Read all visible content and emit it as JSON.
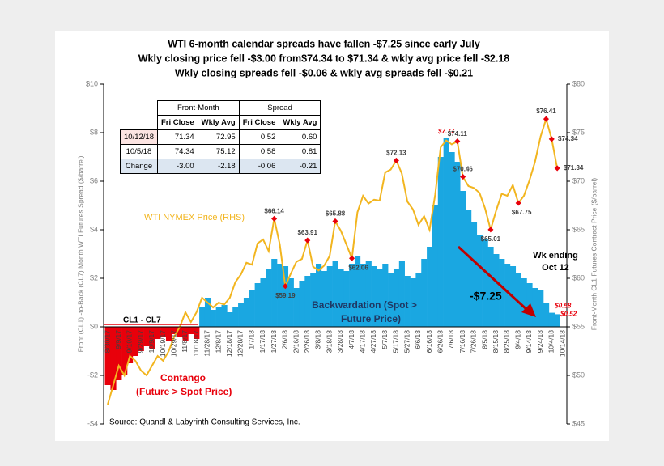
{
  "chart_data": {
    "type": "combo",
    "title_lines": [
      "WTI 6-month calendar spreads have fallen -$7.25 since early July",
      "Wkly closing price fell -$3.00 from$74.34 to $71.34 & wkly avg price fell -$2.18",
      "Wkly closing spreads fell -$0.06 & wkly avg spreads fell -$0.21"
    ],
    "ylabel": "Front (CL1) -to-Back (CL7) Month WTI Futures Spread ($/barrel)",
    "y2label": "Front-Month CL1 Futures Contract Price ($/barrel)",
    "source": "Source: Quandl & Labyrinth Consulting Services, Inc.",
    "notes": [
      "Contango",
      "(Future > Spot Price)",
      "Backwardation (Spot >",
      "Future Price)",
      "-$7.25",
      "Wk ending",
      "Oct 12"
    ],
    "ylim": [
      -4,
      10
    ],
    "yticks": [
      {
        "value": -4,
        "label": "-$4"
      },
      {
        "value": -2,
        "label": "-$2"
      },
      {
        "value": 0,
        "label": "$0"
      },
      {
        "value": 2,
        "label": "$2"
      },
      {
        "value": 4,
        "label": "$4"
      },
      {
        "value": 6,
        "label": "$6"
      },
      {
        "value": 8,
        "label": "$8"
      },
      {
        "value": 10,
        "label": "$10"
      }
    ],
    "y2lim": [
      45,
      80
    ],
    "y2ticks": [
      {
        "value": 45,
        "label": "$45"
      },
      {
        "value": 50,
        "label": "$50"
      },
      {
        "value": 55,
        "label": "$55"
      },
      {
        "value": 60,
        "label": "$60"
      },
      {
        "value": 65,
        "label": "$65"
      },
      {
        "value": 70,
        "label": "$70"
      },
      {
        "value": 75,
        "label": "$75"
      },
      {
        "value": 80,
        "label": "$80"
      }
    ],
    "categories": [
      "8/30/17",
      null,
      "9/9/17",
      null,
      "9/19/17",
      null,
      "9/29/17",
      null,
      "10/9/17",
      null,
      "10/19/17",
      null,
      "10/29/17",
      null,
      "11/8/17",
      null,
      "11/18/17",
      null,
      "11/28/17",
      null,
      "12/8/17",
      null,
      "12/18/17",
      null,
      "12/28/17",
      null,
      "1/7/18",
      null,
      "1/17/18",
      null,
      "1/27/18",
      null,
      "2/6/18",
      null,
      "2/16/18",
      null,
      "2/26/18",
      null,
      "3/8/18",
      null,
      "3/18/18",
      null,
      "3/28/18",
      null,
      "4/7/18",
      null,
      "4/17/18",
      null,
      "4/27/18",
      null,
      "5/7/18",
      null,
      "5/17/18",
      null,
      "5/27/18",
      null,
      "6/6/18",
      null,
      "6/16/18",
      null,
      "6/26/18",
      null,
      "7/6/18",
      null,
      "7/16/18",
      null,
      "7/26/18",
      null,
      "8/5/18",
      null,
      "8/15/18",
      null,
      "8/25/18",
      null,
      "9/4/18",
      null,
      "9/14/18",
      null,
      "9/24/18",
      null,
      "10/4/18",
      null,
      "10/14/18"
    ],
    "series": [
      {
        "name": "CL1 - CL7",
        "type": "bar",
        "color": "#1aa7e1",
        "negative_color": "#e8000b",
        "values": [
          -2.4,
          -2.6,
          -2.2,
          -2.0,
          -1.5,
          -1.2,
          -1.0,
          -0.8,
          -0.9,
          -0.5,
          -0.4,
          -0.6,
          -0.3,
          -0.4,
          -0.6,
          -0.3,
          -0.5,
          0.8,
          1.2,
          0.7,
          0.8,
          0.9,
          0.6,
          0.8,
          1.0,
          1.2,
          1.5,
          1.8,
          2.0,
          2.4,
          2.8,
          2.6,
          2.5,
          2.0,
          1.6,
          1.9,
          2.1,
          2.2,
          2.6,
          2.3,
          2.5,
          2.7,
          2.4,
          2.3,
          2.6,
          2.9,
          2.6,
          2.7,
          2.5,
          2.4,
          2.6,
          2.2,
          2.4,
          2.7,
          2.1,
          2.0,
          2.2,
          2.8,
          3.3,
          5.0,
          7.0,
          7.77,
          7.2,
          6.8,
          5.6,
          4.8,
          4.3,
          3.8,
          3.6,
          3.3,
          3.0,
          2.8,
          2.6,
          2.5,
          2.2,
          2.0,
          1.8,
          1.6,
          1.5,
          1.0,
          0.58,
          0.52,
          null
        ],
        "value_labels": [
          null,
          null,
          null,
          null,
          null,
          null,
          null,
          null,
          null,
          null,
          null,
          null,
          null,
          null,
          null,
          null,
          null,
          null,
          null,
          null,
          null,
          null,
          null,
          null,
          null,
          null,
          null,
          null,
          null,
          null,
          null,
          null,
          null,
          null,
          null,
          null,
          null,
          null,
          null,
          null,
          null,
          null,
          null,
          null,
          null,
          null,
          null,
          null,
          null,
          null,
          null,
          null,
          null,
          null,
          null,
          null,
          null,
          null,
          null,
          null,
          null,
          "$7.77",
          null,
          null,
          null,
          null,
          null,
          null,
          null,
          null,
          null,
          null,
          null,
          null,
          null,
          null,
          null,
          null,
          null,
          null,
          "$0.58",
          "$0.52",
          null
        ]
      },
      {
        "name": "WTI NYMEX Price (RHS)",
        "type": "line",
        "axis": "y2",
        "color": "#f2b51f",
        "values": [
          47,
          49,
          51,
          50,
          52,
          51.5,
          50.5,
          50,
          51,
          52,
          51.5,
          52.5,
          54,
          55,
          56.5,
          55.5,
          56.5,
          58,
          57.5,
          57,
          57.5,
          57.3,
          58,
          59.6,
          60.4,
          61.6,
          61.4,
          63.6,
          64,
          62.8,
          66.14,
          63.5,
          59.19,
          60.5,
          61.7,
          62,
          63.91,
          61.2,
          60.8,
          61.3,
          62.3,
          65.88,
          64.9,
          63.5,
          62.06,
          66.8,
          68.5,
          67.7,
          68.1,
          68,
          70.9,
          71.2,
          72.13,
          70.8,
          67.9,
          67.1,
          65.5,
          66.4,
          65,
          68.6,
          73.5,
          74.2,
          73.8,
          74.11,
          70.46,
          69.5,
          69.3,
          68.8,
          67.2,
          65.01,
          67,
          68.7,
          68.5,
          69.6,
          67.75,
          68.5,
          70.1,
          72,
          74.6,
          76.41,
          74.34,
          71.34,
          null
        ],
        "value_labels": [
          null,
          null,
          null,
          null,
          null,
          null,
          null,
          null,
          null,
          null,
          null,
          null,
          null,
          null,
          null,
          null,
          null,
          null,
          null,
          null,
          null,
          null,
          null,
          null,
          null,
          null,
          null,
          null,
          null,
          null,
          "$66.14",
          null,
          "$59.19",
          null,
          null,
          null,
          "$63.91",
          null,
          null,
          null,
          null,
          "$65.88",
          null,
          null,
          "$62.06",
          null,
          null,
          null,
          null,
          null,
          null,
          null,
          "$72.13",
          null,
          null,
          null,
          null,
          null,
          null,
          null,
          null,
          null,
          null,
          "$74.11",
          "$70.46",
          null,
          null,
          null,
          null,
          "$65.01",
          null,
          null,
          null,
          null,
          "$67.75",
          null,
          null,
          null,
          null,
          "$76.41",
          "$74.34",
          "$71.34",
          null
        ]
      }
    ],
    "table": {
      "group_header": [
        "Front-Month",
        "Spread"
      ],
      "header": [
        "Fri Close",
        "Wkly Avg",
        "Fri Close",
        "Wkly Avg"
      ],
      "rows": [
        [
          "10/12/18",
          "71.34",
          "72.95",
          "0.52",
          "0.60"
        ],
        [
          "10/5/18",
          "74.34",
          "75.12",
          "0.58",
          "0.81"
        ],
        [
          "Change",
          "-3.00",
          "-2.18",
          "-0.06",
          "-0.21"
        ]
      ]
    }
  }
}
